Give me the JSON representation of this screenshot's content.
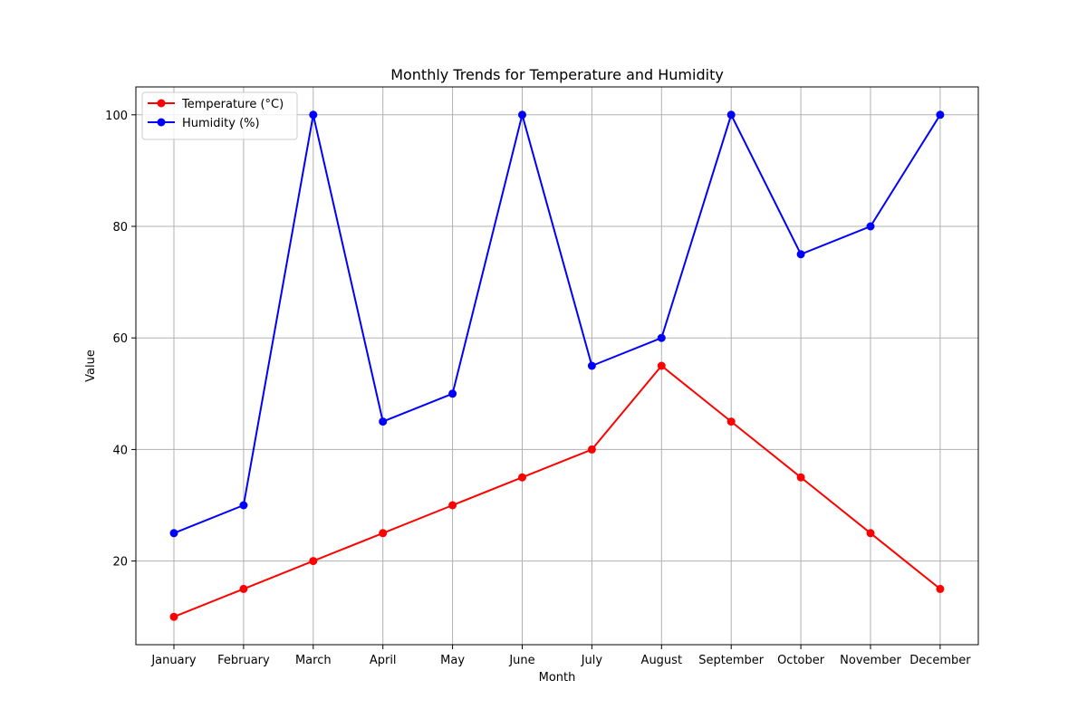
{
  "chart_data": {
    "type": "line",
    "title": "Monthly Trends for Temperature and Humidity",
    "xlabel": "Month",
    "ylabel": "Value",
    "categories": [
      "January",
      "February",
      "March",
      "April",
      "May",
      "June",
      "July",
      "August",
      "September",
      "October",
      "November",
      "December"
    ],
    "ylim": [
      5,
      105
    ],
    "yticks": [
      20,
      40,
      60,
      80,
      100
    ],
    "grid": true,
    "legend_position": "top-left",
    "series": [
      {
        "name": "Temperature (°C)",
        "color": "#ff0000",
        "values": [
          10,
          15,
          20,
          25,
          30,
          35,
          40,
          55,
          45,
          35,
          25,
          15
        ]
      },
      {
        "name": "Humidity (%)",
        "color": "#0000ff",
        "values": [
          25,
          30,
          100,
          45,
          50,
          100,
          55,
          60,
          100,
          75,
          80,
          100
        ]
      }
    ]
  }
}
